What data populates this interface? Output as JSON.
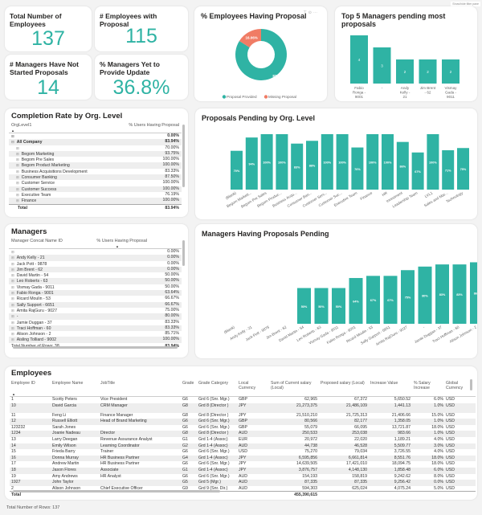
{
  "filter_pane_label": "Show/hide filter pane",
  "kpis": [
    {
      "title": "Total Number of Employees",
      "value": "137"
    },
    {
      "title": "# Employees with Proposal",
      "value": "115"
    },
    {
      "title": "# Managers Have Not Started Proposals",
      "value": "14"
    },
    {
      "title": "% Managers Yet to Provide Update",
      "value": "36.8%"
    }
  ],
  "donut": {
    "title": "% Employees Having Proposal",
    "icons": [
      "filter-icon",
      "focus-icon",
      "more-icon"
    ],
    "slices": [
      {
        "label": "Proposal Provided",
        "value": 83.94,
        "display": "83.94%",
        "color": "#2fb3a4"
      },
      {
        "label": "Missing Proposal",
        "value": 16.06,
        "display": "16.06%",
        "color": "#f07c65"
      }
    ]
  },
  "top5": {
    "title": "Top 5 Managers pending most proposals",
    "categories": [
      "Fabio Ronga - 9001",
      "-",
      "Andy Kelly - 21",
      "Jim Brent - 62",
      "Vismay Gada - 9011"
    ],
    "values": [
      4,
      3,
      2,
      2,
      2
    ]
  },
  "completion": {
    "title": "Completion Rate by Org. Level",
    "col1": "OrgLevel1",
    "col2": "% Users Having Proposal",
    "rows": [
      {
        "label": "",
        "value": "0.00%",
        "bold": true,
        "indent": 0
      },
      {
        "label": "All Company",
        "value": "83.94%",
        "bold": true,
        "indent": 0
      },
      {
        "label": "",
        "value": "70.00%",
        "bold": false,
        "indent": 1
      },
      {
        "label": "Begom Marketing",
        "value": "93.75%",
        "bold": false,
        "indent": 1
      },
      {
        "label": "Begom Pre Sales",
        "value": "100.00%",
        "bold": false,
        "indent": 1
      },
      {
        "label": "Begom Product Marketing",
        "value": "100.00%",
        "bold": false,
        "indent": 1
      },
      {
        "label": "Business Acquisitions Development",
        "value": "83.33%",
        "bold": false,
        "indent": 1
      },
      {
        "label": "Consumer Banking",
        "value": "87.50%",
        "bold": false,
        "indent": 1
      },
      {
        "label": "Customer Service",
        "value": "100.00%",
        "bold": false,
        "indent": 1
      },
      {
        "label": "Customer Success",
        "value": "100.00%",
        "bold": false,
        "indent": 1
      },
      {
        "label": "Executive Team",
        "value": "76.19%",
        "bold": false,
        "indent": 1
      },
      {
        "label": "Finance",
        "value": "100.00%",
        "bold": false,
        "indent": 1
      }
    ],
    "total_label": "Total",
    "total_value": "83.94%"
  },
  "pending_org": {
    "title": "Proposals Pending by Org. Level",
    "categories": [
      "(Blank)",
      "Begom Marketi...",
      "Begom Pre Sales",
      "Begom Produc...",
      "Business Acqu...",
      "Consumer Ban...",
      "Customer Serv...",
      "Customer Suc...",
      "Executive Team",
      "Finance",
      "HR",
      "Investment",
      "Leadership Team",
      "LVL1",
      "Sales and Mar...",
      "Technology"
    ],
    "values": [
      70,
      94,
      100,
      100,
      83,
      88,
      100,
      100,
      76,
      100,
      100,
      86,
      67,
      100,
      71,
      75
    ]
  },
  "managers": {
    "title": "Managers",
    "col1": "Manager Concat Name ID",
    "col2": "% Users Having Proposal",
    "rows": [
      {
        "label": "",
        "value": "0.00%"
      },
      {
        "label": "Andy Kelly - 21",
        "value": "0.00%"
      },
      {
        "label": "Jack Pott - 9878",
        "value": "0.00%"
      },
      {
        "label": "Jim Brent - 62",
        "value": "0.00%"
      },
      {
        "label": "David Martin - 54",
        "value": "50.00%"
      },
      {
        "label": "Leo Roberts - 63",
        "value": "50.00%"
      },
      {
        "label": "Vismay Gada - 9011",
        "value": "50.00%"
      },
      {
        "label": "Fabio Ronga - 9001",
        "value": "63.64%"
      },
      {
        "label": "Ricard Moulin - 53",
        "value": "66.67%"
      },
      {
        "label": "Sally Support - 6651",
        "value": "66.67%"
      },
      {
        "label": "Amita RajGuru - 9027",
        "value": "75.00%"
      },
      {
        "label": "-",
        "value": "80.00%"
      },
      {
        "label": "Jamie Duggan - 37",
        "value": "83.33%"
      },
      {
        "label": "Traci Hoffman - 60",
        "value": "83.33%"
      },
      {
        "label": "Alison Johnson - 2",
        "value": "85.71%"
      },
      {
        "label": "Aisling Tolliard - 9002",
        "value": "100.00%"
      }
    ],
    "total_label": "Total",
    "row_count_label": "Number of Rows: 38",
    "total_value": "83.94%"
  },
  "pending_mgr": {
    "title": "Managers Having Proposals Pending",
    "categories": [
      "(Blank)",
      "Andy Kelly - 21",
      "Jack Pott - 9878",
      "Jim Brent - 62",
      "David Martin - 54",
      "Leo Roberts - 63",
      "Vismay Gada - 9011",
      "Fabio Ronga - 9001",
      "Ricard Moulin - 53",
      "Sally Support - 6651",
      "Amita RajGuru - 9027",
      "-",
      "Jamie Duggan - 37",
      "Traci Hoffman - 60",
      "Alison Johnson - 2"
    ],
    "values": [
      0,
      0,
      0,
      0,
      50,
      50,
      50,
      64,
      67,
      67,
      75,
      80,
      83,
      83,
      86
    ]
  },
  "employees": {
    "title": "Employees",
    "columns": [
      "Employee ID",
      "Employee Name",
      "JobTitle",
      "Grade",
      "Grade Category",
      "Local Currency",
      "Sum of Current salary (Local)",
      "Proposed salary (Local)",
      "Increase Value",
      "% Salary Increase",
      "Global Currency"
    ],
    "rows": [
      [
        "1",
        "Scotty Peters",
        "Vice President",
        "G6",
        "Grd 6 (Snr. Mgr.)",
        "GBP",
        "62,965",
        "67,372",
        "5,650.52",
        "6.0%",
        "USD"
      ],
      [
        "10",
        "David Garcia",
        "CRM Manager",
        "G8",
        "Grd 8 (Director )",
        "JPY",
        "21,273,375",
        "21,486,109",
        "1,441.13",
        "1.0%",
        "USD"
      ],
      [
        "11",
        "Feng Li",
        "Finance Manager",
        "G8",
        "Grd 8 (Director )",
        "JPY",
        "21,510,210",
        "21,725,313",
        "21,406.66",
        "15.0%",
        "USD"
      ],
      [
        "12",
        "Russell Elliott",
        "Head of Brand Marketing",
        "G6",
        "Grd 6 (Snr. Mgr.)",
        "GBP",
        "80,566",
        "82,177",
        "1,358.05",
        "1.0%",
        "USD"
      ],
      [
        "123232",
        "Sarah Jones",
        "",
        "G6",
        "Grd 6 (Snr. Mgr.)",
        "GBP",
        "55,079",
        "66,095",
        "13,721.87",
        "18.0%",
        "USD"
      ],
      [
        "1234",
        "Joanie Nadeau",
        "Director",
        "G8",
        "Grd 8 (Director )",
        "AUD",
        "250,533",
        "253,038",
        "983.66",
        "1.0%",
        "USD"
      ],
      [
        "13",
        "Larry Deegan",
        "Revenue Assurance Analyst",
        "G1",
        "Grd 1-4 (Assoc)",
        "EUR",
        "20,972",
        "22,020",
        "1,189.21",
        "4.0%",
        "USD"
      ],
      [
        "14",
        "Emily Wilson",
        "Learning Coordinator",
        "G2",
        "Grd 1-4 (Assoc)",
        "AUD",
        "44,738",
        "46,528",
        "5,509.77",
        "3.0%",
        "USD"
      ],
      [
        "15",
        "Frieda Barry",
        "Trainer",
        "G6",
        "Grd 6 (Snr. Mgr.)",
        "USD",
        "75,270",
        "79,034",
        "3,726.55",
        "4.0%",
        "USD"
      ],
      [
        "16",
        "Donna Murray",
        "HR Business Partner",
        "G4",
        "Grd 1-4 (Assoc)",
        "JPY",
        "6,595,856",
        "6,661,814",
        "8,551.76",
        "18.0%",
        "USD"
      ],
      [
        "17",
        "Andrew Martin",
        "HR Business Partner",
        "G6",
        "Grd 6 (Snr. Mgr.)",
        "JPY",
        "14,639,505",
        "17,421,010",
        "18,094.75",
        "18.0%",
        "USD"
      ],
      [
        "18",
        "Jason Flores",
        "Associate",
        "G1",
        "Grd 1-4 (Assoc)",
        "JPY",
        "3,876,757",
        "4,148,130",
        "1,858.48",
        "6.0%",
        "USD"
      ],
      [
        "19",
        "Amy Andrews",
        "HR Analyst",
        "G6",
        "Grd 6 (Snr. Mgr.)",
        "AUD",
        "154,193",
        "158,819",
        "9,242.62",
        "8.0%",
        "USD"
      ],
      [
        "1927",
        "John Taylor",
        "",
        "G5",
        "Grd 5 (Mgr.)",
        "AUD",
        "87,335",
        "87,335",
        "9,256.42",
        "0.0%",
        "USD"
      ],
      [
        "2",
        "Alison Johnson",
        "Chief Executive Officer",
        "G9",
        "Grd 9 (Snr. Dir.)",
        "AUD",
        "594,303",
        "625,024",
        "4,075.24",
        "5.0%",
        "USD"
      ]
    ],
    "total_label": "Total",
    "total_salary": "455,390,615",
    "row_count": "Total Number of Rows: 137"
  }
}
